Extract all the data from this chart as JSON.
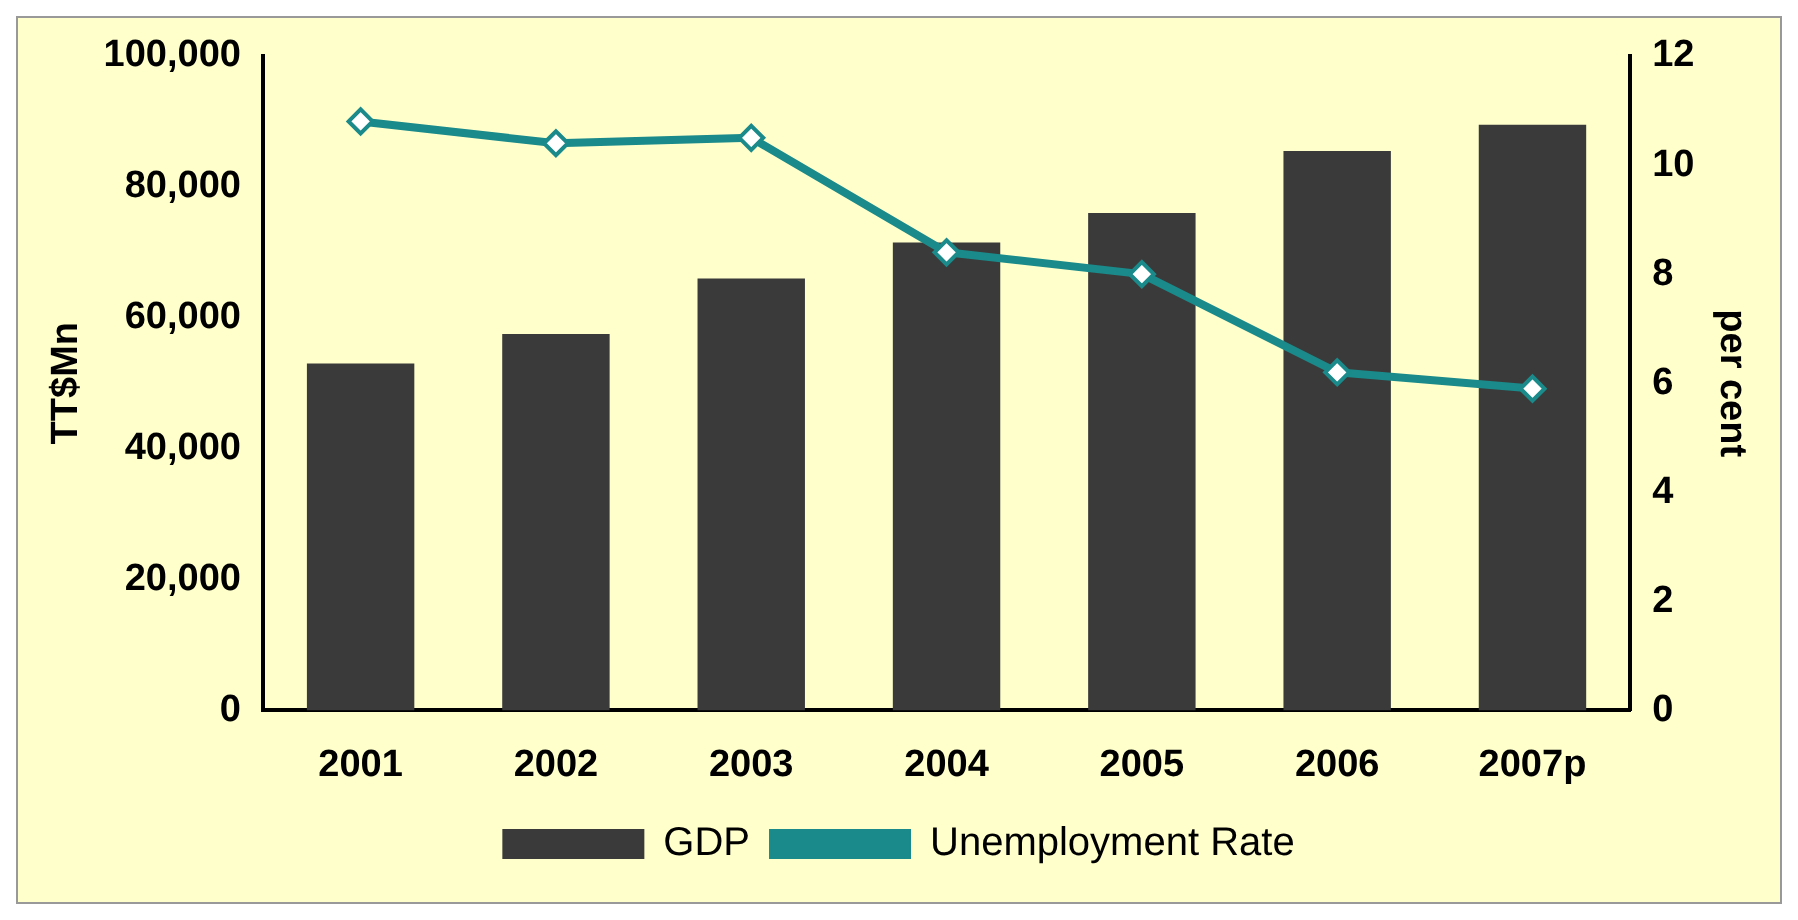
{
  "chart_data": {
    "type": "bar",
    "categories": [
      "2001",
      "2002",
      "2003",
      "2004",
      "2005",
      "2006",
      "2007p"
    ],
    "ylabel": "TT$Mn",
    "y2label": "per cent",
    "ylim": [
      0,
      100000
    ],
    "yticks": [
      {
        "value": 0,
        "label": "0"
      },
      {
        "value": 20000,
        "label": "20,000"
      },
      {
        "value": 40000,
        "label": "40,000"
      },
      {
        "value": 60000,
        "label": "60,000"
      },
      {
        "value": 80000,
        "label": "80,000"
      },
      {
        "value": 100000,
        "label": "100,000"
      }
    ],
    "y2lim": [
      0,
      12
    ],
    "y2ticks": [
      0,
      2,
      4,
      6,
      8,
      10,
      12
    ],
    "legend": "bottom",
    "marker": "diamond",
    "series": [
      {
        "name": "GDP",
        "color": "#3a3a3a",
        "values": [
          53000,
          57500,
          66000,
          71500,
          76000,
          85500,
          89500
        ]
      },
      {
        "name": "Unemployment Rate",
        "type": "line",
        "axis": "y2",
        "color": "#1a8a8a",
        "values": [
          10.8,
          10.4,
          10.5,
          8.4,
          8.0,
          6.2,
          5.9
        ]
      }
    ]
  }
}
